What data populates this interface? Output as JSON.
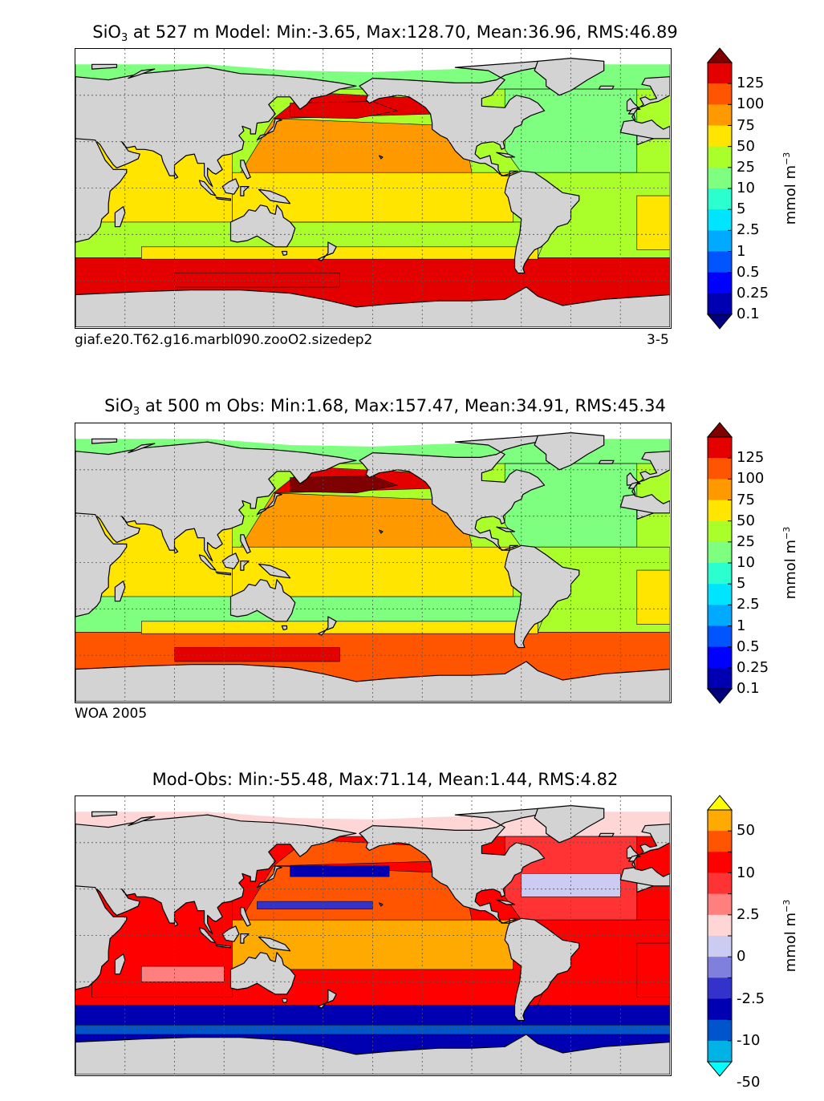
{
  "panels": [
    {
      "id": "model",
      "title_pre": "SiO",
      "title_sub": "3",
      "title_post": " at 527 m Model: Min:-3.65, Max:128.70, Mean:36.96, RMS:46.89",
      "caption_left": "giaf.e20.T62.g16.marbl090.zooO2.sizedep2",
      "caption_right": "3-5",
      "colorbar_unit": "mmol m",
      "colorbar_unit_exp": "−3"
    },
    {
      "id": "obs",
      "title_pre": "SiO",
      "title_sub": "3",
      "title_post": " at 500 m Obs: Min:1.68, Max:157.47, Mean:34.91, RMS:45.34",
      "caption_left": "WOA 2005",
      "caption_right": "",
      "colorbar_unit": "mmol m",
      "colorbar_unit_exp": "−3"
    },
    {
      "id": "diff",
      "title_pre": "",
      "title_sub": "",
      "title_post": "Mod-Obs: Min:-55.48, Max:71.14, Mean:1.44, RMS:4.82",
      "caption_left": "",
      "caption_right": "",
      "colorbar_unit": "mmol m",
      "colorbar_unit_exp": "−3"
    }
  ],
  "colors": {
    "land": "#d3d3d3",
    "ice": "#ffffff",
    "grid": "#555555",
    "abs_scale": [
      "#00007f",
      "#0000b2",
      "#0000ff",
      "#0055ff",
      "#00aaff",
      "#00e5ff",
      "#2bffcf",
      "#7fff7f",
      "#aaff2b",
      "#ffe500",
      "#ff9900",
      "#ff5500",
      "#e50000",
      "#7f0000"
    ],
    "diff_scale": [
      "#00ffff",
      "#00b2e5",
      "#0055cc",
      "#0000b2",
      "#3333cc",
      "#7f7fdd",
      "#ccccf2",
      "#ffd6d6",
      "#ff7f7f",
      "#ff3333",
      "#ff0000",
      "#ff5500",
      "#ffaa00",
      "#ffff00"
    ]
  },
  "chart_data": [
    {
      "type": "heatmap",
      "title": "SiO3 at 527 m Model: Min:-3.65, Max:128.70, Mean:36.96, RMS:46.89",
      "variable": "SiO3",
      "depth_m": 527,
      "stats": {
        "min": -3.65,
        "max": 128.7,
        "mean": 36.96,
        "rms": 46.89
      },
      "colorbar": {
        "ticks": [
          "125",
          "100",
          "75",
          "50",
          "25",
          "10",
          "5",
          "2.5",
          "1",
          "0.5",
          "0.25",
          "0.1"
        ],
        "levels": [
          0,
          0.1,
          0.25,
          0.5,
          1,
          2.5,
          5,
          10,
          25,
          50,
          75,
          100,
          125,
          150
        ],
        "unit": "mmol m^-3",
        "extend": "both"
      },
      "region_values": {
        "north_pacific": 110,
        "subarctic_pacific": 95,
        "central_pacific": 60,
        "equatorial_pacific": 40,
        "indian_ocean": 30,
        "south_pacific_mid": 10,
        "north_atlantic": 8,
        "south_atlantic": 12,
        "southern_ocean": 100,
        "arctic": 8
      }
    },
    {
      "type": "heatmap",
      "title": "SiO3 at 500 m Obs: Min:1.68, Max:157.47, Mean:34.91, RMS:45.34",
      "variable": "SiO3",
      "depth_m": 500,
      "source": "WOA 2005",
      "stats": {
        "min": 1.68,
        "max": 157.47,
        "mean": 34.91,
        "rms": 45.34
      },
      "colorbar": {
        "ticks": [
          "125",
          "100",
          "75",
          "50",
          "25",
          "10",
          "5",
          "2.5",
          "1",
          "0.5",
          "0.25",
          "0.1"
        ],
        "levels": [
          0,
          0.1,
          0.25,
          0.5,
          1,
          2.5,
          5,
          10,
          25,
          50,
          75,
          100,
          125,
          150
        ],
        "unit": "mmol m^-3",
        "extend": "both"
      },
      "region_values": {
        "north_pacific": 115,
        "subarctic_pacific": 90,
        "central_pacific": 60,
        "equatorial_pacific": 35,
        "indian_ocean": 25,
        "south_pacific_mid": 8,
        "north_atlantic": 6,
        "south_atlantic": 12,
        "southern_ocean": 95,
        "arctic": 7
      }
    },
    {
      "type": "heatmap",
      "title": "Mod-Obs: Min:-55.48, Max:71.14, Mean:1.44, RMS:4.82",
      "stats": {
        "min": -55.48,
        "max": 71.14,
        "mean": 1.44,
        "rms": 4.82
      },
      "colorbar": {
        "ticks": [
          "50",
          "10",
          "2.5",
          "0",
          "-2.5",
          "-10",
          "-50"
        ],
        "levels": [
          -100,
          -50,
          -25,
          -10,
          -5,
          -2.5,
          -1,
          0,
          1,
          2.5,
          5,
          10,
          25,
          50,
          100
        ],
        "unit": "mmol m^-3",
        "extend": "both"
      },
      "region_values": {
        "north_pacific": 8,
        "central_pacific": 6,
        "equatorial_pacific": 10,
        "indian_ocean": 3,
        "north_atlantic": 1,
        "south_atlantic": 3,
        "southern_ocean": -12,
        "arctic": -1
      }
    }
  ]
}
